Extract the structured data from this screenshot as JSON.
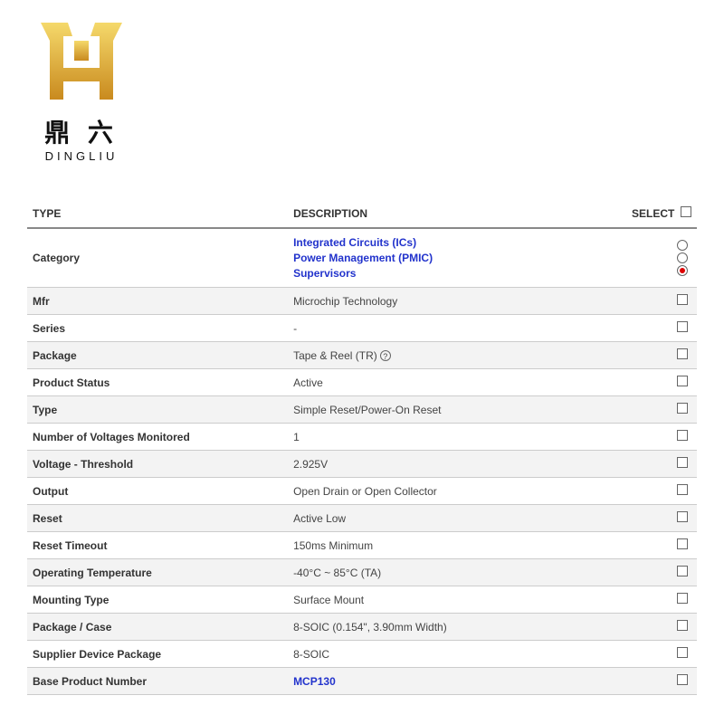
{
  "logo": {
    "chinese": "鼎 六",
    "latin": "DINGLIU",
    "gold_light": "#f5d96b",
    "gold_dark": "#c98a1e"
  },
  "table": {
    "headers": {
      "type": "TYPE",
      "description": "DESCRIPTION",
      "select": "SELECT"
    },
    "link_color": "#2233cc",
    "alt_bg": "#f3f3f3",
    "rows": [
      {
        "type": "Category",
        "kind": "links",
        "items": [
          {
            "label": "Integrated Circuits (ICs)",
            "selected": false
          },
          {
            "label": "Power Management (PMIC)",
            "selected": false
          },
          {
            "label": "Supervisors",
            "selected": true
          }
        ],
        "alt": false
      },
      {
        "type": "Mfr",
        "desc": "Microchip Technology",
        "alt": true
      },
      {
        "type": "Series",
        "desc": "-",
        "alt": false
      },
      {
        "type": "Package",
        "desc": "Tape & Reel (TR)",
        "help": true,
        "alt": true
      },
      {
        "type": "Product Status",
        "desc": "Active",
        "alt": false
      },
      {
        "type": "Type",
        "desc": "Simple Reset/Power-On Reset",
        "alt": true
      },
      {
        "type": "Number of Voltages Monitored",
        "desc": "1",
        "alt": false
      },
      {
        "type": "Voltage - Threshold",
        "desc": "2.925V",
        "alt": true
      },
      {
        "type": "Output",
        "desc": "Open Drain or Open Collector",
        "alt": false
      },
      {
        "type": "Reset",
        "desc": "Active Low",
        "alt": true
      },
      {
        "type": "Reset Timeout",
        "desc": "150ms Minimum",
        "alt": false
      },
      {
        "type": "Operating Temperature",
        "desc": "-40°C ~ 85°C (TA)",
        "alt": true
      },
      {
        "type": "Mounting Type",
        "desc": "Surface Mount",
        "alt": false
      },
      {
        "type": "Package / Case",
        "desc": "8-SOIC (0.154\", 3.90mm Width)",
        "alt": true
      },
      {
        "type": "Supplier Device Package",
        "desc": "8-SOIC",
        "alt": false
      },
      {
        "type": "Base Product Number",
        "kind": "link",
        "desc": "MCP130",
        "alt": true
      }
    ]
  }
}
